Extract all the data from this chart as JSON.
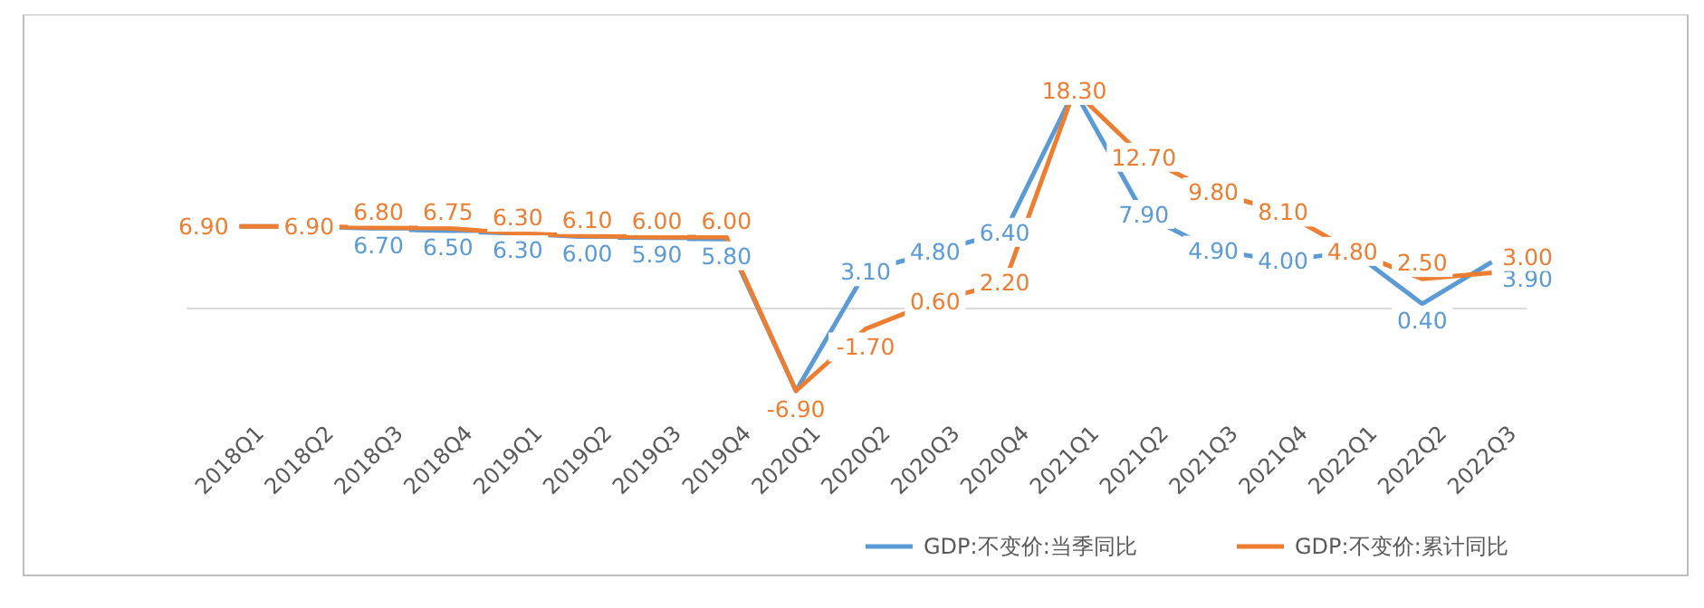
{
  "chart_data": {
    "type": "line",
    "categories": [
      "2018Q1",
      "2018Q2",
      "2018Q3",
      "2018Q4",
      "2019Q1",
      "2019Q2",
      "2019Q3",
      "2019Q4",
      "2020Q1",
      "2020Q2",
      "2020Q3",
      "2020Q4",
      "2021Q1",
      "2021Q2",
      "2021Q3",
      "2021Q4",
      "2022Q1",
      "2022Q2",
      "2022Q3"
    ],
    "tick_labels": "x",
    "legend": "bottom right",
    "line_style": "solid",
    "series": [
      {
        "name": "GDP:不变价:当季同比",
        "color": "#5b9bd5",
        "values": [
          6.9,
          6.9,
          6.7,
          6.5,
          6.3,
          6.0,
          5.9,
          5.8,
          -6.9,
          3.1,
          4.8,
          6.4,
          18.3,
          7.9,
          4.9,
          4.0,
          4.8,
          0.4,
          3.9
        ],
        "value_labels": [
          null,
          null,
          "6.70",
          "6.50",
          "6.30",
          "6.00",
          "5.90",
          "5.80",
          null,
          "3.10",
          "4.80",
          "6.40",
          null,
          "7.90",
          "4.90",
          "4.00",
          null,
          "0.40",
          "3.90"
        ]
      },
      {
        "name": "GDP:不变价:累计同比",
        "color": "#ed7d31",
        "values": [
          6.9,
          6.9,
          6.8,
          6.75,
          6.3,
          6.1,
          6.0,
          6.0,
          -6.9,
          -1.7,
          0.6,
          2.2,
          18.3,
          12.7,
          9.8,
          8.1,
          4.8,
          2.5,
          3.0
        ],
        "value_labels": [
          "6.90",
          "6.90",
          "6.80",
          "6.75",
          "6.30",
          "6.10",
          "6.00",
          "6.00",
          "-6.90",
          "-1.70",
          "0.60",
          "2.20",
          "18.30",
          "12.70",
          "9.80",
          "8.10",
          "4.80",
          "2.50",
          "3.00"
        ]
      }
    ]
  }
}
